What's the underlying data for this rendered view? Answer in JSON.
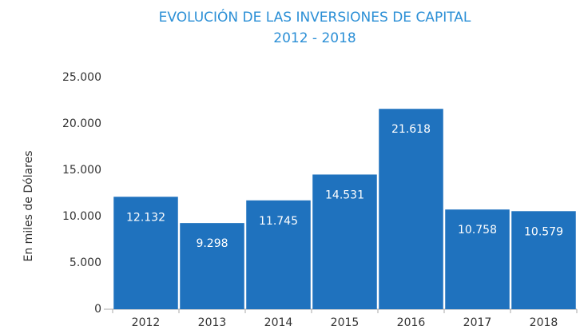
{
  "chart_data": {
    "type": "bar",
    "title": "EVOLUCIÓN DE LAS INVERSIONES DE CAPITAL",
    "subtitle": "2012 - 2018",
    "y_label": "En miles de Dólares",
    "categories": [
      "2012",
      "2013",
      "2014",
      "2015",
      "2016",
      "2017",
      "2018"
    ],
    "values": [
      12132,
      9298,
      11745,
      14531,
      21618,
      10758,
      10579
    ],
    "value_labels": [
      "12.132",
      "9.298",
      "11.745",
      "14.531",
      "21.618",
      "10.758",
      "10.579"
    ],
    "color": "#1f72be",
    "ylim": [
      0,
      25000
    ],
    "yticks": [
      0,
      {
        "value": 5000,
        "label": "5.000"
      },
      {
        "value": 10000,
        "label": "10.000"
      },
      {
        "value": 15000,
        "label": "15.000"
      },
      {
        "value": 20000,
        "label": "20.000"
      },
      {
        "value": 25000,
        "label": "25.000"
      }
    ],
    "grid": false
  }
}
